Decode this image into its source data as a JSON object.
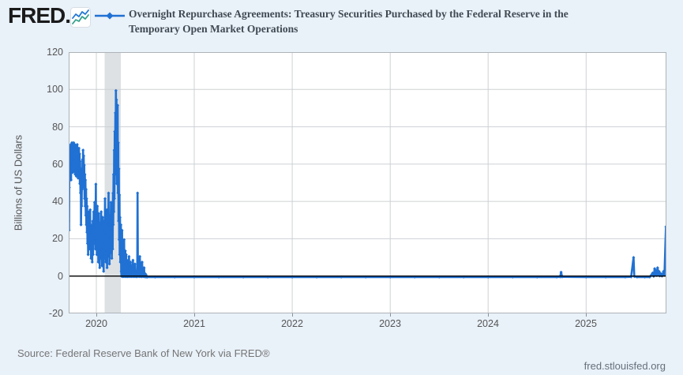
{
  "header": {
    "logo_text": "FRED.",
    "title_lines": [
      "Overnight Repurchase Agreements: Treasury Securities Purchased by the Federal Reserve in the",
      "Temporary Open Market Operations"
    ]
  },
  "chart_data": {
    "type": "line",
    "title": "Overnight Repurchase Agreements: Treasury Securities Purchased by the Federal Reserve in the Temporary Open Market Operations",
    "xlabel": "",
    "ylabel": "Billions of US Dollars",
    "ylim": [
      -20,
      120
    ],
    "yticks": [
      120,
      100,
      80,
      60,
      40,
      20,
      0,
      -20
    ],
    "xlim": [
      2019.718,
      2025.82
    ],
    "xticks": [
      2020,
      2021,
      2022,
      2023,
      2024,
      2025
    ],
    "grid": true,
    "zero_line_at": 0,
    "legend_position": "top",
    "recession_band": {
      "from": 2020.085,
      "to": 2020.25
    },
    "series": [
      {
        "name": "Overnight Repurchase Agreements: Treasury Securities Purchased by the Federal Reserve in the Temporary Open Market Operations",
        "color": "#2071d3",
        "points": [
          [
            2019.718,
            30
          ],
          [
            2019.72,
            53
          ],
          [
            2019.722,
            25
          ],
          [
            2019.724,
            48
          ],
          [
            2019.727,
            68
          ],
          [
            2019.73,
            55
          ],
          [
            2019.733,
            70
          ],
          [
            2019.736,
            58
          ],
          [
            2019.739,
            71
          ],
          [
            2019.742,
            52
          ],
          [
            2019.745,
            67
          ],
          [
            2019.748,
            60
          ],
          [
            2019.751,
            72
          ],
          [
            2019.754,
            63
          ],
          [
            2019.757,
            70
          ],
          [
            2019.76,
            56
          ],
          [
            2019.763,
            69
          ],
          [
            2019.766,
            61
          ],
          [
            2019.769,
            72
          ],
          [
            2019.772,
            57
          ],
          [
            2019.775,
            68
          ],
          [
            2019.778,
            62
          ],
          [
            2019.781,
            71
          ],
          [
            2019.784,
            55
          ],
          [
            2019.787,
            66
          ],
          [
            2019.79,
            59
          ],
          [
            2019.793,
            70
          ],
          [
            2019.796,
            54
          ],
          [
            2019.799,
            65
          ],
          [
            2019.802,
            58
          ],
          [
            2019.805,
            71
          ],
          [
            2019.808,
            60
          ],
          [
            2019.811,
            68
          ],
          [
            2019.814,
            53
          ],
          [
            2019.817,
            64
          ],
          [
            2019.82,
            57
          ],
          [
            2019.823,
            69
          ],
          [
            2019.826,
            55
          ],
          [
            2019.829,
            66
          ],
          [
            2019.832,
            50
          ],
          [
            2019.835,
            62
          ],
          [
            2019.838,
            45
          ],
          [
            2019.841,
            58
          ],
          [
            2019.844,
            28
          ],
          [
            2019.847,
            46
          ],
          [
            2019.85,
            38
          ],
          [
            2019.853,
            55
          ],
          [
            2019.856,
            47
          ],
          [
            2019.859,
            63
          ],
          [
            2019.862,
            52
          ],
          [
            2019.865,
            68
          ],
          [
            2019.868,
            56
          ],
          [
            2019.871,
            65
          ],
          [
            2019.874,
            48
          ],
          [
            2019.877,
            60
          ],
          [
            2019.88,
            42
          ],
          [
            2019.883,
            55
          ],
          [
            2019.886,
            38
          ],
          [
            2019.889,
            52
          ],
          [
            2019.892,
            33
          ],
          [
            2019.895,
            47
          ],
          [
            2019.898,
            28
          ],
          [
            2019.901,
            42
          ],
          [
            2019.904,
            24
          ],
          [
            2019.907,
            38
          ],
          [
            2019.91,
            18
          ],
          [
            2019.913,
            32
          ],
          [
            2019.916,
            12
          ],
          [
            2019.919,
            28
          ],
          [
            2019.922,
            20
          ],
          [
            2019.925,
            35
          ],
          [
            2019.928,
            15
          ],
          [
            2019.931,
            30
          ],
          [
            2019.934,
            22
          ],
          [
            2019.937,
            36
          ],
          [
            2019.94,
            16
          ],
          [
            2019.943,
            28
          ],
          [
            2019.946,
            10
          ],
          [
            2019.949,
            24
          ],
          [
            2019.952,
            14
          ],
          [
            2019.955,
            26
          ],
          [
            2019.958,
            8
          ],
          [
            2019.961,
            20
          ],
          [
            2019.964,
            30
          ],
          [
            2019.967,
            12
          ],
          [
            2019.97,
            25
          ],
          [
            2019.973,
            35
          ],
          [
            2019.976,
            18
          ],
          [
            2019.979,
            28
          ],
          [
            2019.982,
            40
          ],
          [
            2019.985,
            22
          ],
          [
            2019.988,
            32
          ],
          [
            2019.991,
            15
          ],
          [
            2019.995,
            49.8
          ],
          [
            2019.998,
            20
          ],
          [
            2020.002,
            33
          ],
          [
            2020.005,
            12
          ],
          [
            2020.008,
            27
          ],
          [
            2020.011,
            38
          ],
          [
            2020.014,
            18
          ],
          [
            2020.017,
            30
          ],
          [
            2020.02,
            8
          ],
          [
            2020.023,
            22
          ],
          [
            2020.026,
            34
          ],
          [
            2020.029,
            14
          ],
          [
            2020.032,
            26
          ],
          [
            2020.035,
            5
          ],
          [
            2020.038,
            18
          ],
          [
            2020.041,
            29
          ],
          [
            2020.044,
            10
          ],
          [
            2020.047,
            23
          ],
          [
            2020.05,
            35
          ],
          [
            2020.053,
            15
          ],
          [
            2020.056,
            28
          ],
          [
            2020.059,
            6
          ],
          [
            2020.062,
            20
          ],
          [
            2020.065,
            32
          ],
          [
            2020.068,
            12
          ],
          [
            2020.071,
            25
          ],
          [
            2020.074,
            3
          ],
          [
            2020.077,
            17
          ],
          [
            2020.08,
            30
          ],
          [
            2020.083,
            10
          ],
          [
            2020.086,
            22
          ],
          [
            2020.089,
            42
          ],
          [
            2020.092,
            18
          ],
          [
            2020.095,
            33
          ],
          [
            2020.098,
            8
          ],
          [
            2020.101,
            24
          ],
          [
            2020.104,
            14
          ],
          [
            2020.107,
            36
          ],
          [
            2020.11,
            5
          ],
          [
            2020.113,
            20
          ],
          [
            2020.116,
            30
          ],
          [
            2020.119,
            11
          ],
          [
            2020.122,
            26
          ],
          [
            2020.125,
            45
          ],
          [
            2020.128,
            16
          ],
          [
            2020.131,
            28
          ],
          [
            2020.134,
            7
          ],
          [
            2020.137,
            21
          ],
          [
            2020.14,
            33
          ],
          [
            2020.143,
            13
          ],
          [
            2020.146,
            25
          ],
          [
            2020.149,
            40
          ],
          [
            2020.152,
            18
          ],
          [
            2020.155,
            30
          ],
          [
            2020.158,
            10
          ],
          [
            2020.161,
            24
          ],
          [
            2020.164,
            36
          ],
          [
            2020.167,
            15
          ],
          [
            2020.17,
            45
          ],
          [
            2020.173,
            28
          ],
          [
            2020.176,
            55
          ],
          [
            2020.179,
            35
          ],
          [
            2020.182,
            68
          ],
          [
            2020.185,
            42
          ],
          [
            2020.188,
            78
          ],
          [
            2020.191,
            55
          ],
          [
            2020.194,
            88
          ],
          [
            2020.197,
            62
          ],
          [
            2020.2,
            99.9
          ],
          [
            2020.203,
            75
          ],
          [
            2020.206,
            95
          ],
          [
            2020.209,
            50
          ],
          [
            2020.212,
            85
          ],
          [
            2020.215,
            65
          ],
          [
            2020.218,
            92
          ],
          [
            2020.221,
            45
          ],
          [
            2020.224,
            72
          ],
          [
            2020.227,
            30
          ],
          [
            2020.23,
            58
          ],
          [
            2020.233,
            20
          ],
          [
            2020.236,
            44
          ],
          [
            2020.239,
            12
          ],
          [
            2020.242,
            32
          ],
          [
            2020.245,
            8
          ],
          [
            2020.248,
            24
          ],
          [
            2020.251,
            28
          ],
          [
            2020.254,
            3
          ],
          [
            2020.257,
            0.5
          ],
          [
            2020.26,
            0.3
          ],
          [
            2020.263,
            25
          ],
          [
            2020.266,
            2
          ],
          [
            2020.269,
            0.4
          ],
          [
            2020.272,
            0.2
          ],
          [
            2020.275,
            16
          ],
          [
            2020.278,
            1
          ],
          [
            2020.281,
            0.3
          ],
          [
            2020.284,
            20
          ],
          [
            2020.287,
            2
          ],
          [
            2020.29,
            0.3
          ],
          [
            2020.293,
            0.2
          ],
          [
            2020.296,
            14
          ],
          [
            2020.299,
            1
          ],
          [
            2020.302,
            0.3
          ],
          [
            2020.305,
            12
          ],
          [
            2020.308,
            0.5
          ],
          [
            2020.311,
            0.2
          ],
          [
            2020.314,
            9
          ],
          [
            2020.317,
            0.4
          ],
          [
            2020.32,
            0.2
          ],
          [
            2020.323,
            6
          ],
          [
            2020.326,
            0.5
          ],
          [
            2020.33,
            0.2
          ],
          [
            2020.334,
            11
          ],
          [
            2020.338,
            1
          ],
          [
            2020.342,
            0.3
          ],
          [
            2020.346,
            0.2
          ],
          [
            2020.35,
            8
          ],
          [
            2020.354,
            0.5
          ],
          [
            2020.358,
            0.2
          ],
          [
            2020.362,
            6
          ],
          [
            2020.366,
            0.4
          ],
          [
            2020.37,
            0.2
          ],
          [
            2020.374,
            9
          ],
          [
            2020.378,
            0.5
          ],
          [
            2020.382,
            0.2
          ],
          [
            2020.386,
            4
          ],
          [
            2020.39,
            0.3
          ],
          [
            2020.394,
            7
          ],
          [
            2020.398,
            0.4
          ],
          [
            2020.402,
            0.2
          ],
          [
            2020.406,
            3
          ],
          [
            2020.41,
            0.2
          ],
          [
            2020.414,
            0.2
          ],
          [
            2020.418,
            0.3
          ],
          [
            2020.421,
            45
          ],
          [
            2020.425,
            1
          ],
          [
            2020.428,
            0.3
          ],
          [
            2020.432,
            10
          ],
          [
            2020.436,
            0.5
          ],
          [
            2020.44,
            0.2
          ],
          [
            2020.444,
            11
          ],
          [
            2020.448,
            0.4
          ],
          [
            2020.452,
            0.2
          ],
          [
            2020.456,
            7
          ],
          [
            2020.46,
            0.3
          ],
          [
            2020.464,
            0.2
          ],
          [
            2020.468,
            8
          ],
          [
            2020.472,
            0.4
          ],
          [
            2020.476,
            0.2
          ],
          [
            2020.48,
            4
          ],
          [
            2020.484,
            0.3
          ],
          [
            2020.488,
            5
          ],
          [
            2020.492,
            0.2
          ],
          [
            2020.496,
            2
          ],
          [
            2020.5,
            0.1
          ],
          [
            2020.505,
            1.5
          ],
          [
            2020.51,
            0.1
          ],
          [
            2020.515,
            0.5
          ],
          [
            2020.52,
            0
          ],
          [
            2020.6,
            0
          ],
          [
            2020.8,
            0
          ],
          [
            2021,
            0
          ],
          [
            2021.25,
            0
          ],
          [
            2021.5,
            0
          ],
          [
            2021.75,
            0
          ],
          [
            2022,
            0
          ],
          [
            2022.25,
            0
          ],
          [
            2022.5,
            0
          ],
          [
            2022.75,
            0
          ],
          [
            2023,
            0
          ],
          [
            2023.25,
            0
          ],
          [
            2023.5,
            0
          ],
          [
            2023.75,
            0
          ],
          [
            2024,
            0
          ],
          [
            2024.25,
            0
          ],
          [
            2024.5,
            0
          ],
          [
            2024.7,
            0
          ],
          [
            2024.735,
            0.1
          ],
          [
            2024.745,
            2.6
          ],
          [
            2024.755,
            0.1
          ],
          [
            2025,
            0
          ],
          [
            2025.2,
            0
          ],
          [
            2025.4,
            0
          ],
          [
            2025.46,
            0.1
          ],
          [
            2025.485,
            10.5
          ],
          [
            2025.492,
            0.3
          ],
          [
            2025.52,
            0
          ],
          [
            2025.6,
            0
          ],
          [
            2025.65,
            0
          ],
          [
            2025.68,
            2.2
          ],
          [
            2025.69,
            0.4
          ],
          [
            2025.7,
            4.5
          ],
          [
            2025.707,
            1
          ],
          [
            2025.715,
            3.5
          ],
          [
            2025.722,
            0.8
          ],
          [
            2025.73,
            5
          ],
          [
            2025.738,
            1.5
          ],
          [
            2025.745,
            3
          ],
          [
            2025.752,
            0.6
          ],
          [
            2025.76,
            2
          ],
          [
            2025.775,
            0.5
          ],
          [
            2025.79,
            3
          ],
          [
            2025.8,
            1
          ],
          [
            2025.815,
            27
          ]
        ]
      }
    ]
  },
  "footer": {
    "source": "Source: Federal Reserve Bank of New York via FRED®",
    "site": "fred.stlouisfed.org"
  },
  "colors": {
    "page_bg": "#e9f1f9",
    "plot_bg": "#ffffff",
    "grid": "#cdd1d4",
    "frame": "#adb3b8",
    "recession_band": "#dde1e4",
    "series": "#2071d3",
    "zero_line": "#000000",
    "title_text": "#404a53",
    "axis_text": "#555555",
    "logo_blue": "#2478d3",
    "logo_teal": "#36a08c"
  }
}
